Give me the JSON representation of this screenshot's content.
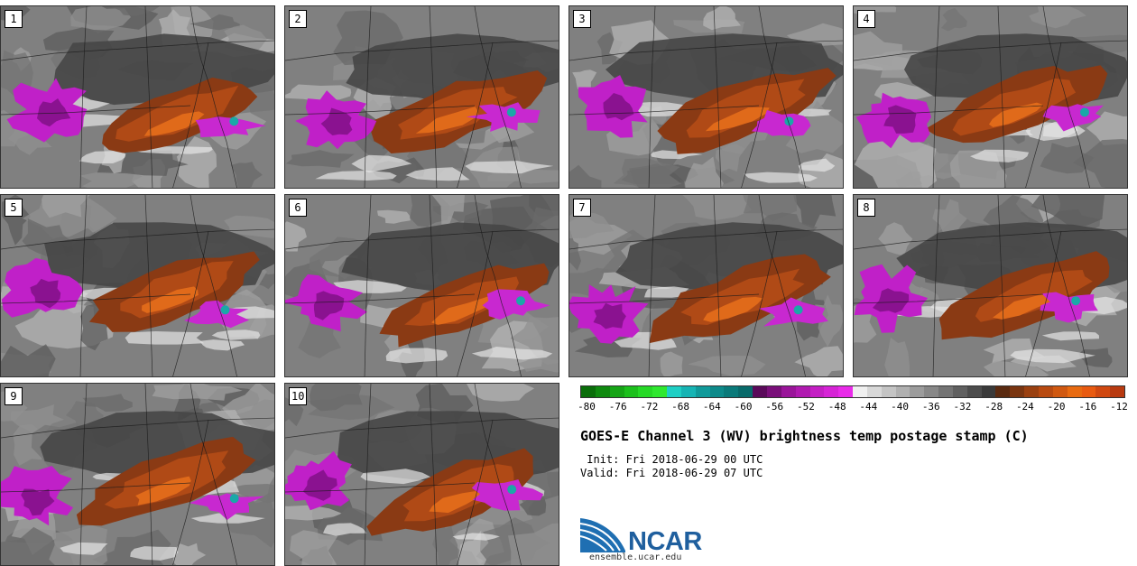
{
  "panels": [
    {
      "label": "1"
    },
    {
      "label": "2"
    },
    {
      "label": "3"
    },
    {
      "label": "4"
    },
    {
      "label": "5"
    },
    {
      "label": "6"
    },
    {
      "label": "7"
    },
    {
      "label": "8"
    },
    {
      "label": "9"
    },
    {
      "label": "10"
    }
  ],
  "colorbar": {
    "colors": [
      "#0a6e0a",
      "#0f8a0f",
      "#16a516",
      "#1cc01c",
      "#26d926",
      "#2fe82f",
      "#1ecfc4",
      "#16b4b4",
      "#109a9a",
      "#0d8a8a",
      "#0a7a7a",
      "#086a6a",
      "#5a0a5a",
      "#7a0f7a",
      "#9a159a",
      "#b01ab0",
      "#c41fc4",
      "#d624d6",
      "#e92be9",
      "#f0f0f0",
      "#d8d8d8",
      "#c4c4c4",
      "#b0b0b0",
      "#9c9c9c",
      "#888888",
      "#747474",
      "#606060",
      "#4c4c4c",
      "#3a3a3a",
      "#5a2a10",
      "#7a3510",
      "#9a4010",
      "#b84a10",
      "#d05810",
      "#e86a10",
      "#e85a10",
      "#d04810",
      "#b83a10"
    ],
    "ticks": [
      "-80",
      "-76",
      "-72",
      "-68",
      "-64",
      "-60",
      "-56",
      "-52",
      "-48",
      "-44",
      "-40",
      "-36",
      "-32",
      "-28",
      "-24",
      "-20",
      "-16",
      "-12"
    ]
  },
  "title": "GOES-E Channel 3 (WV) brightness temp postage stamp (C)",
  "init_line": " Init: Fri 2018-06-29 00 UTC",
  "valid_line": "Valid: Fri 2018-06-29 07 UTC",
  "logo": {
    "text": "NCAR",
    "url": "ensemble.ucar.edu",
    "color": "#1f5f9e"
  }
}
